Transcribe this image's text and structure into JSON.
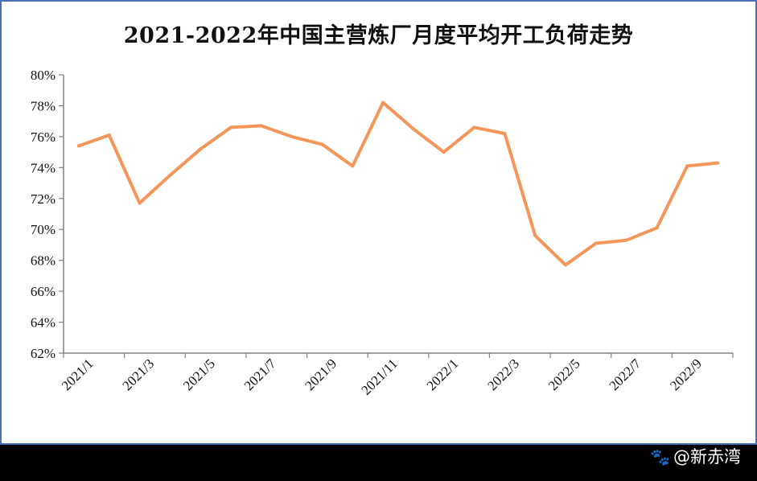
{
  "chart_data": {
    "type": "line",
    "title": "2021-2022年中国主营炼厂月度平均开工负荷走势",
    "xlabel": "",
    "ylabel": "",
    "ylim": [
      62,
      80
    ],
    "ytick_step": 2,
    "y_tick_labels": [
      "62%",
      "64%",
      "66%",
      "68%",
      "70%",
      "72%",
      "74%",
      "76%",
      "78%",
      "80%"
    ],
    "categories": [
      "2021/1",
      "2021/2",
      "2021/3",
      "2021/4",
      "2021/5",
      "2021/6",
      "2021/7",
      "2021/8",
      "2021/9",
      "2021/10",
      "2021/11",
      "2021/12",
      "2022/1",
      "2022/2",
      "2022/3",
      "2022/4",
      "2022/5",
      "2022/6",
      "2022/7",
      "2022/8",
      "2022/9",
      "2022/10"
    ],
    "x_tick_labels": [
      "2021/1",
      "2021/3",
      "2021/5",
      "2021/7",
      "2021/9",
      "2021/11",
      "2022/1",
      "2022/3",
      "2022/5",
      "2022/7",
      "2022/9"
    ],
    "series": [
      {
        "color": "#f4965a",
        "values": [
          75.4,
          76.1,
          71.7,
          73.5,
          75.2,
          76.6,
          76.7,
          76.0,
          75.5,
          74.1,
          78.2,
          76.5,
          75.0,
          76.6,
          76.2,
          69.6,
          67.7,
          69.1,
          69.3,
          70.1,
          74.1,
          74.3
        ]
      }
    ],
    "grid": false,
    "legend": "none"
  },
  "watermark": {
    "icon": "paw-icon",
    "text": "@新赤湾"
  },
  "colors": {
    "frame_border": "#4a6fb5",
    "axis": "#808080",
    "line": "#f4965a",
    "footer_band": "#000000"
  }
}
